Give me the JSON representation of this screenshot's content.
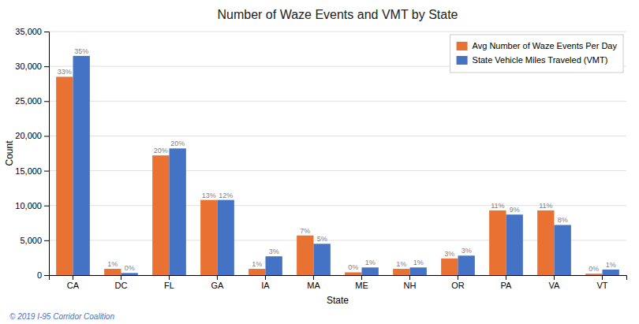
{
  "chart_data": {
    "type": "bar",
    "title": "Number of Waze Events and VMT by State",
    "xlabel": "State",
    "ylabel": "Count",
    "categories": [
      "CA",
      "DC",
      "FL",
      "GA",
      "IA",
      "MA",
      "ME",
      "NH",
      "OR",
      "PA",
      "VA",
      "VT"
    ],
    "series": [
      {
        "name": "Avg Number of Waze Events Per Day",
        "color": "#E97132",
        "values": [
          28500,
          900,
          17200,
          10800,
          900,
          5700,
          400,
          900,
          2400,
          9300,
          9300,
          200
        ],
        "share_labels": [
          "33%",
          "1%",
          "20%",
          "13%",
          "1%",
          "7%",
          "0%",
          "1%",
          "3%",
          "11%",
          "11%",
          "0%"
        ]
      },
      {
        "name": "State Vehicle Miles Traveled (VMT)",
        "color": "#4472C4",
        "values": [
          31500,
          300,
          18200,
          10800,
          2700,
          4500,
          1100,
          1100,
          2800,
          8700,
          7200,
          800
        ],
        "share_labels": [
          "35%",
          "0%",
          "20%",
          "12%",
          "3%",
          "5%",
          "1%",
          "1%",
          "3%",
          "9%",
          "8%",
          "1%"
        ]
      }
    ],
    "ylim": [
      0,
      35000
    ],
    "yticks": [
      0,
      {
        "value": 5000,
        "label": "5,000"
      },
      {
        "value": 10000,
        "label": "10,000"
      },
      {
        "value": 15000,
        "label": "15,000"
      },
      {
        "value": 20000,
        "label": "20,000"
      },
      {
        "value": 25000,
        "label": "25,000"
      },
      {
        "value": 30000,
        "label": "30,000"
      },
      {
        "value": 35000,
        "label": "35,000"
      }
    ],
    "grid": true,
    "legend": "upper right",
    "footer": "© 2019 I-95 Corridor Coalition"
  }
}
